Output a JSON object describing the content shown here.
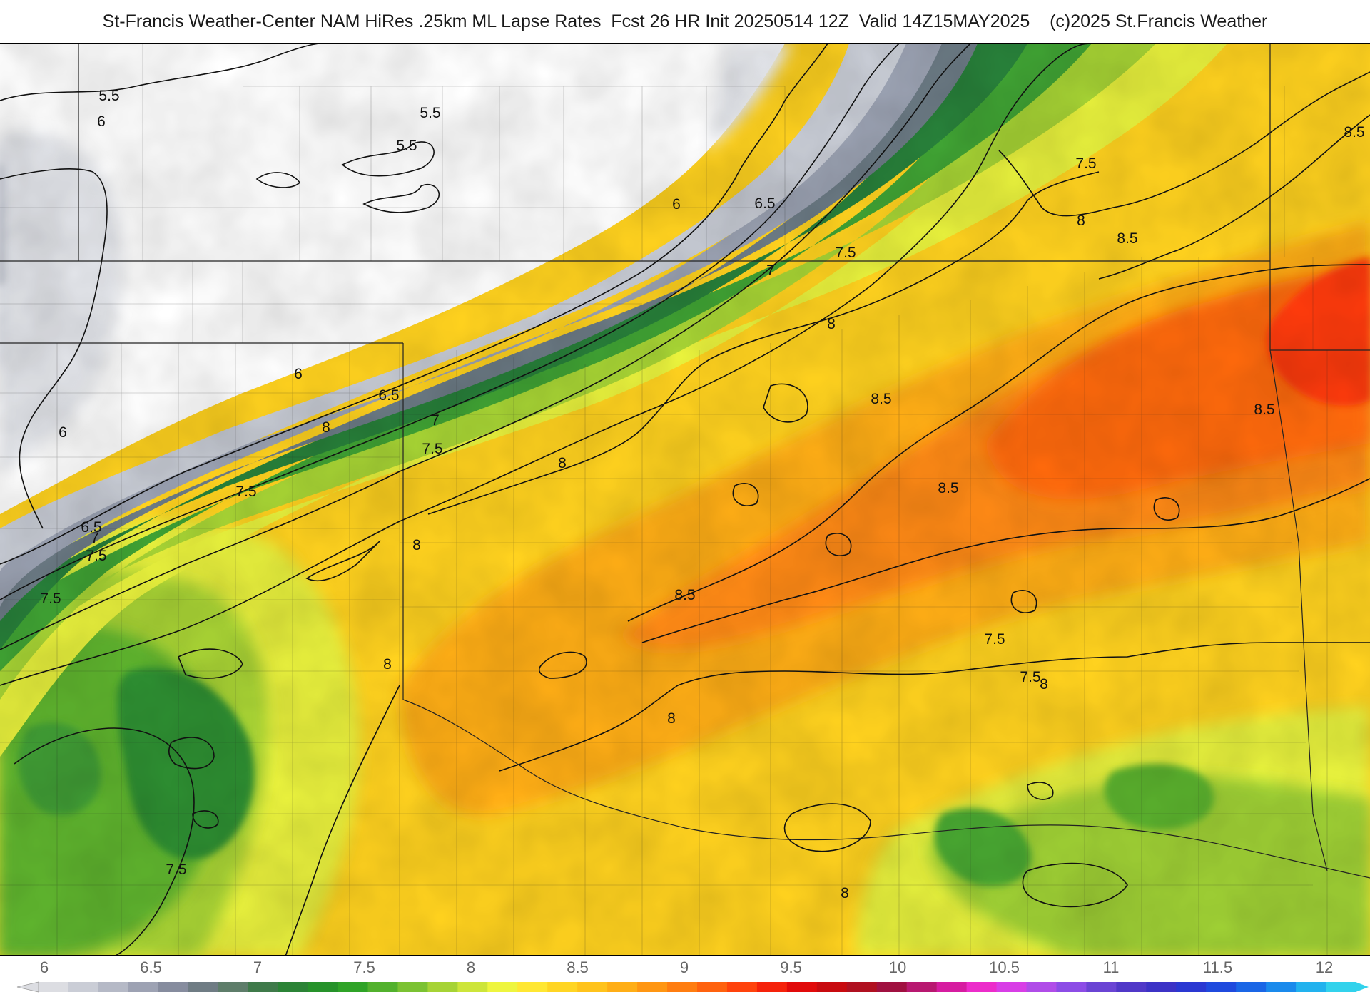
{
  "title": "St-Francis Weather-Center NAM HiRes .25km ML Lapse Rates  Fcst 26 HR Init 20250514 12Z  Valid 14Z15MAY2025    (c)2025 St.Francis Weather",
  "map": {
    "contour_labels": [
      "5.5",
      "5.5",
      "5.5",
      "6",
      "6",
      "6",
      "6",
      "6.5",
      "6.5",
      "6.5",
      "7",
      "7",
      "7",
      "7.5",
      "7.5",
      "7.5",
      "7.5",
      "7.5",
      "7.5",
      "7.5",
      "7.5",
      "7.5",
      "8",
      "8",
      "8",
      "8",
      "8",
      "8",
      "8",
      "8",
      "8",
      "8.5",
      "8.5",
      "8.5",
      "8.5",
      "8.5",
      "8.5"
    ]
  },
  "colorbar": {
    "tick_labels": [
      "6",
      "6.5",
      "7",
      "7.5",
      "8",
      "8.5",
      "9",
      "9.5",
      "10",
      "10.5",
      "11",
      "11.5",
      "12"
    ],
    "colors": [
      "#dcdde2",
      "#cacdd6",
      "#b5b9c6",
      "#9da2b3",
      "#868c9e",
      "#6f7c84",
      "#5e7d6a",
      "#3f7a4a",
      "#2b8336",
      "#26922a",
      "#2fa327",
      "#52b12d",
      "#7bc232",
      "#a6d335",
      "#cde53a",
      "#eef53f",
      "#ffe733",
      "#ffd524",
      "#ffc31c",
      "#ffae16",
      "#ff9612",
      "#ff7d10",
      "#ff620e",
      "#ff430c",
      "#f5220a",
      "#e10a0a",
      "#c80a0f",
      "#b01020",
      "#a01040",
      "#b81870",
      "#d61ca0",
      "#ec2cca",
      "#d83ee6",
      "#b04ce8",
      "#8c4ce6",
      "#6a44d4",
      "#5038c8",
      "#3c32c6",
      "#2a38d2",
      "#1f4ade",
      "#1a66e6",
      "#1a8aec",
      "#22b2ee",
      "#32d2ec"
    ],
    "tick_start_value": 6,
    "tick_end_value": 12
  }
}
